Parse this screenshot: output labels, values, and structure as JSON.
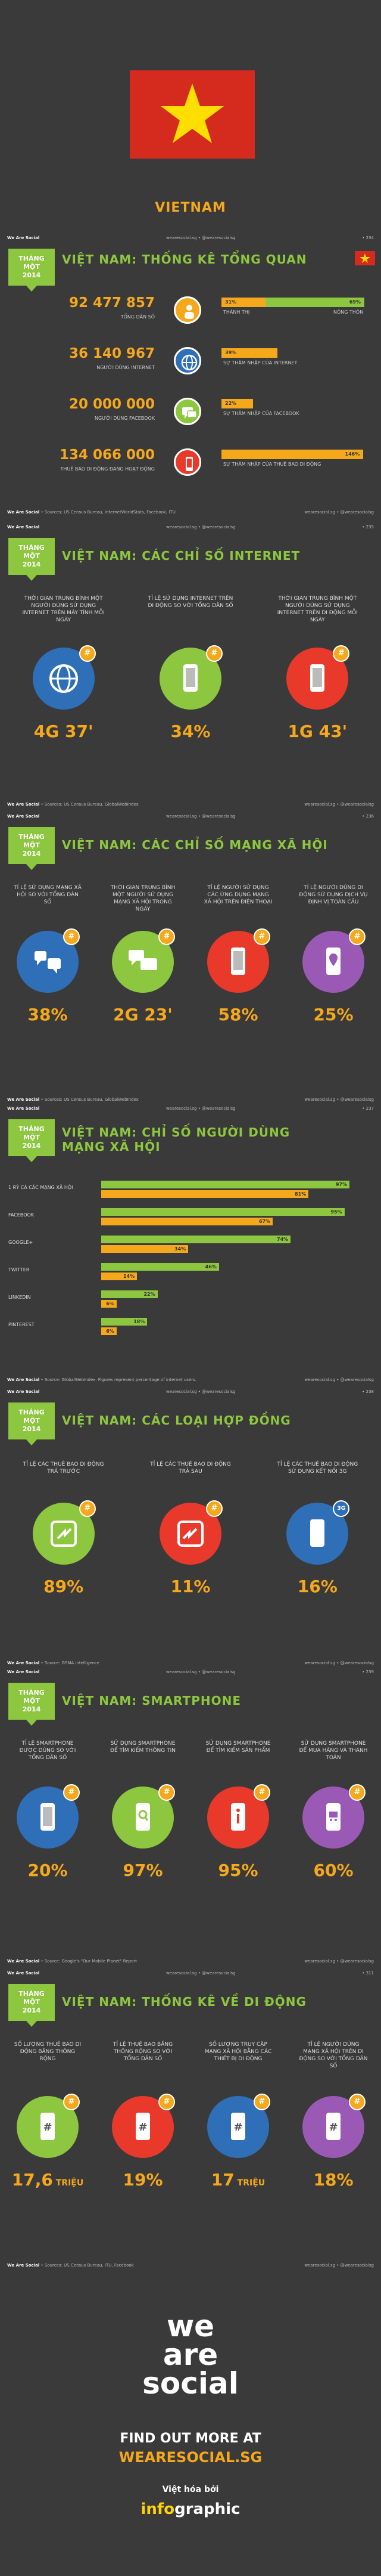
{
  "hero": {
    "title": "VIETNAM"
  },
  "brand": {
    "name": "We Are Social",
    "handle": "wearesocial.sg • @wearesocialsg"
  },
  "month": {
    "line1": "THÁNG",
    "line2": "MỘT",
    "line3": "2014"
  },
  "s1": {
    "title": "VIỆT NAM: THỐNG KÊ TỔNG QUAN",
    "page": "• 234",
    "source": "• Sources: US Census Bureau, InternetWorldStats, Facebook, ITU",
    "rows": [
      {
        "num": "92 477 857",
        "label": "TỔNG DÂN SỐ",
        "icon": "people-icon"
      },
      {
        "num": "36 140 967",
        "label": "NGƯỜI DÙNG INTERNET",
        "icon": "globe-icon"
      },
      {
        "num": "20 000 000",
        "label": "NGƯỜI DÙNG FACEBOOK",
        "icon": "chat-icon"
      },
      {
        "num": "134 066 000",
        "label": "THUÊ BAO DI ĐỘNG ĐANG HOẠT ĐỘNG",
        "icon": "phone-icon"
      }
    ],
    "urban": {
      "pct": "31%",
      "label": "THÀNH THỊ",
      "value": 31
    },
    "rural": {
      "pct": "69%",
      "label": "NÔNG THÔN",
      "value": 69
    },
    "internet_pen": {
      "pct": "39%",
      "label": "SỰ THÂM NHẬP CỦA INTERNET",
      "value": 39
    },
    "fb_pen": {
      "pct": "22%",
      "label": "SỰ THÂM NHẬP CỦA FACEBOOK",
      "value": 22
    },
    "mobile_pen": {
      "pct": "146%",
      "label": "SỰ THÂM NHẬP CỦA THUÊ BAO DI ĐỘNG",
      "value": 146
    }
  },
  "s2": {
    "title": "VIỆT NAM: CÁC CHỈ SỐ INTERNET",
    "page": "• 235",
    "source": "• Sources: US Census Bureau, GlobalWebIndex",
    "items": [
      {
        "q": "THỜI GIAN TRUNG BÌNH MỘT NGƯỜI DÙNG SỬ DỤNG INTERNET TRÊN MÁY TÍNH MỖI NGÀY",
        "val": "4G 37'",
        "color": "#2e6fb8",
        "icon": "globe-icon"
      },
      {
        "q": "TỈ LỆ SỬ DỤNG INTERNET TRÊN DI ĐỘNG SO VỚI TỔNG DÂN SỐ",
        "val": "34%",
        "color": "#8dc63f",
        "icon": "smartphone-icon"
      },
      {
        "q": "THỜI GIAN TRUNG BÌNH MỘT NGƯỜI DÙNG SỬ DỤNG INTERNET TRÊN DI ĐỘNG MỖI NGÀY",
        "val": "1G 43'",
        "color": "#e8392b",
        "icon": "smartphone-icon"
      }
    ]
  },
  "s3": {
    "title": "VIỆT NAM: CÁC CHỈ SỐ MẠNG XÃ HỘI",
    "page": "• 236",
    "source": "• Sources: US Census Bureau, GlobalWebIndex",
    "items": [
      {
        "q": "TỈ LỆ SỬ DỤNG MẠNG XÃ HỘI SO VỚI TỔNG DÂN SỐ",
        "val": "38%",
        "color": "#2e6fb8",
        "icon": "people-icon"
      },
      {
        "q": "THỜI GIAN TRUNG BÌNH MỘT NGƯỜI SỬ DỤNG MẠNG XÃ HỘI TRONG NGÀY",
        "val": "2G 23'",
        "color": "#8dc63f",
        "icon": "chat-icon"
      },
      {
        "q": "TỈ LỆ NGƯỜI SỬ DỤNG CÁC ỨNG DỤNG MẠNG XÃ HỘI TRÊN ĐIỆN THOẠI",
        "val": "58%",
        "color": "#e8392b",
        "icon": "smartphone-icon"
      },
      {
        "q": "TỈ LỆ NGƯỜI DÙNG DI ĐỘNG SỬ DỤNG DỊCH VỤ ĐỊNH VỊ TOÀN CẦU",
        "val": "25%",
        "color": "#9b59b6",
        "icon": "location-icon"
      }
    ]
  },
  "s4": {
    "title": "VIỆT NAM: CHỈ SỐ NGƯỜI DÙNG MẠNG XÃ HỘI",
    "page": "• 237",
    "source": "• Source: GlobalWebIndex. Figures represent percentage of internet users.",
    "legend_note": "",
    "rows": [
      {
        "label": "1 RỲ CÁ CÁC MẠNG XÃ HỘI",
        "g": 97,
        "o": 81,
        "gt": "97%",
        "ot": "81%"
      },
      {
        "label": "FACEBOOK",
        "g": 95,
        "o": 67,
        "gt": "95%",
        "ot": "67%"
      },
      {
        "label": "GOOGLE+",
        "g": 74,
        "o": 34,
        "gt": "74%",
        "ot": "34%"
      },
      {
        "label": "TWITTER",
        "g": 46,
        "o": 14,
        "gt": "46%",
        "ot": "14%"
      },
      {
        "label": "LINKEDIN",
        "g": 22,
        "o": 6,
        "gt": "22%",
        "ot": "6%"
      },
      {
        "label": "PINTEREST",
        "g": 18,
        "o": 6,
        "gt": "18%",
        "ot": "6%"
      }
    ]
  },
  "s5": {
    "title": "VIỆT NAM: CÁC LOẠI HỢP ĐỒNG",
    "page": "• 238",
    "source": "• Source: GSMA Intelligence",
    "items": [
      {
        "q": "TỈ LỆ CÁC THUÊ BAO DI ĐỘNG TRẢ TRƯỚC",
        "val": "89%",
        "color": "#8dc63f",
        "icon": "prepaid-icon"
      },
      {
        "q": "TỈ LỆ CÁC THUÊ BAO DI ĐỘNG TRẢ SAU",
        "val": "11%",
        "color": "#e8392b",
        "icon": "postpaid-icon"
      },
      {
        "q": "TỈ LỆ CÁC THUÊ BAO DI ĐỘNG SỬ DỤNG KẾT NỐI 3G",
        "val": "16%",
        "color": "#2e6fb8",
        "icon": "3g-icon",
        "badge": "3G"
      }
    ]
  },
  "s6": {
    "title": "VIỆT NAM: SMARTPHONE",
    "page": "• 239",
    "source": "• Source: Google's \"Our Mobile Planet\" Report",
    "items": [
      {
        "q": "TỈ LỆ SMARTPHONE ĐƯỢC DÙNG SO VỚI TỔNG DÂN SỐ",
        "val": "20%",
        "color": "#2e6fb8",
        "icon": "smartphone-icon"
      },
      {
        "q": "SỬ DỤNG SMARTPHONE ĐỂ TÌM KIẾM THÔNG TIN",
        "val": "97%",
        "color": "#8dc63f",
        "icon": "search-icon"
      },
      {
        "q": "SỬ DỤNG SMARTPHONE ĐỂ TÌM KIẾM SẢN PHẨM",
        "val": "95%",
        "color": "#e8392b",
        "icon": "info-icon"
      },
      {
        "q": "SỬ DỤNG SMARTPHONE ĐỂ MUA HÀNG VÀ THANH TOÁN",
        "val": "60%",
        "color": "#9b59b6",
        "icon": "cart-icon"
      }
    ]
  },
  "s7": {
    "title": "VIỆT NAM: THỐNG KÊ VỀ DI ĐỘNG",
    "page": "• 311",
    "source": "• Sources: US Census Bureau, ITU, Facebook",
    "items": [
      {
        "q": "SỐ LƯỢNG THUÊ BAO DI ĐỘNG BĂNG THÔNG RỘNG",
        "val": "17,6",
        "unit": "TRIỆU",
        "color": "#8dc63f",
        "icon": "hashtag-icon"
      },
      {
        "q": "TỈ LỆ THUÊ BAO BĂNG THÔNG RỘNG SO VỚI TỔNG DÂN SỐ",
        "val": "19%",
        "unit": "",
        "color": "#e8392b",
        "icon": "hashtag-icon"
      },
      {
        "q": "SỐ LƯỢNG TRUY CẬP MẠNG XÃ HỘI BẰNG CÁC THIẾT BỊ DI ĐỘNG",
        "val": "17",
        "unit": "TRIỆU",
        "color": "#2e6fb8",
        "icon": "hashtag-icon"
      },
      {
        "q": "TỈ LỆ NGƯỜI DÙNG MẠNG XÃ HỘI TRÊN DI ĐỘNG SO VỚI TỔNG DÂN SỐ",
        "val": "18%",
        "unit": "",
        "color": "#9b59b6",
        "icon": "hashtag-icon"
      }
    ]
  },
  "footer": {
    "logo1": "we",
    "logo2": "are",
    "logo3": "social",
    "find": "FIND OUT MORE AT",
    "url": "WEARESOCIAL.SG",
    "by": "Việt hóa bởi",
    "ig1": "info",
    "ig2": "graphic"
  }
}
